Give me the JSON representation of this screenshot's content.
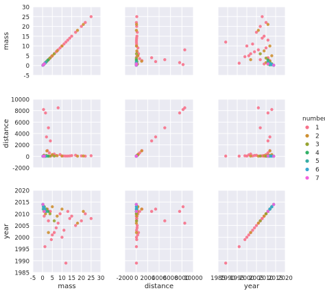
{
  "chart_data": {
    "type": "scatter",
    "layout": "pairplot",
    "variables": [
      "mass",
      "distance",
      "year"
    ],
    "hue_title": "number",
    "axes": {
      "mass": {
        "label": "mass",
        "lim": [
          -5,
          30
        ],
        "ticks": [
          -5,
          0,
          5,
          10,
          15,
          20,
          25,
          30
        ]
      },
      "distance": {
        "label": "distance",
        "lim": [
          -2000,
          10000
        ],
        "ticks": [
          -2000,
          0,
          2000,
          4000,
          6000,
          8000,
          10000
        ]
      },
      "year": {
        "label": "year",
        "lim": [
          1985,
          2020
        ],
        "ticks": [
          1985,
          1990,
          1995,
          2000,
          2005,
          2010,
          2015,
          2020
        ]
      }
    },
    "legend_placement": "right",
    "grid": true,
    "series": [
      {
        "name": "1",
        "color": "#f77189",
        "points": [
          {
            "mass": 25.0,
            "distance": 100,
            "year": 2008
          },
          {
            "mass": 12.0,
            "distance": 40,
            "year": 1989
          },
          {
            "mass": 8.0,
            "distance": 8500,
            "year": 2006
          },
          {
            "mass": 0.5,
            "distance": 8200,
            "year": 2013
          },
          {
            "mass": 1.5,
            "distance": 7600,
            "year": 2011
          },
          {
            "mass": 3.0,
            "distance": 5000,
            "year": 2007
          },
          {
            "mass": 2.0,
            "distance": 3400,
            "year": 2012
          },
          {
            "mass": 4.0,
            "distance": 2700,
            "year": 2011
          },
          {
            "mass": 20.0,
            "distance": 80,
            "year": 2007
          },
          {
            "mass": 17.0,
            "distance": 180,
            "year": 2005
          },
          {
            "mass": 15.0,
            "distance": 120,
            "year": 2009
          },
          {
            "mass": 11.0,
            "distance": 60,
            "year": 2003
          },
          {
            "mass": 10.0,
            "distance": 50,
            "year": 2000
          },
          {
            "mass": 9.0,
            "distance": 300,
            "year": 2010
          },
          {
            "mass": 7.0,
            "distance": 150,
            "year": 2004
          },
          {
            "mass": 6.0,
            "distance": 400,
            "year": 2002
          },
          {
            "mass": 5.0,
            "distance": 250,
            "year": 2001
          },
          {
            "mass": 4.5,
            "distance": 90,
            "year": 1999
          },
          {
            "mass": 3.5,
            "distance": 600,
            "year": 2011
          },
          {
            "mass": 2.5,
            "distance": 1000,
            "year": 2012
          },
          {
            "mass": 1.2,
            "distance": 35,
            "year": 1996
          },
          {
            "mass": 0.8,
            "distance": 20,
            "year": 2009
          },
          {
            "mass": 13.0,
            "distance": 45,
            "year": 2011
          },
          {
            "mass": 22.0,
            "distance": 30,
            "year": 2010
          },
          {
            "mass": 14.0,
            "distance": 70,
            "year": 2008
          }
        ]
      },
      {
        "name": "2",
        "color": "#ce9032",
        "points": [
          {
            "mass": 21.0,
            "distance": 60,
            "year": 2011
          },
          {
            "mass": 18.0,
            "distance": 25,
            "year": 2006
          },
          {
            "mass": 10.0,
            "distance": 55,
            "year": 2012
          },
          {
            "mass": 7.5,
            "distance": 110,
            "year": 2009
          },
          {
            "mass": 5.0,
            "distance": 300,
            "year": 2013
          },
          {
            "mass": 3.0,
            "distance": 40,
            "year": 2002
          },
          {
            "mass": 1.5,
            "distance": 80,
            "year": 2010
          },
          {
            "mass": 0.7,
            "distance": 200,
            "year": 2011
          },
          {
            "mass": 2.2,
            "distance": 950,
            "year": 2012
          }
        ]
      },
      {
        "name": "3",
        "color": "#97a431",
        "points": [
          {
            "mass": 6.0,
            "distance": 45,
            "year": 2007
          },
          {
            "mass": 3.8,
            "distance": 20,
            "year": 2010
          },
          {
            "mass": 2.0,
            "distance": 130,
            "year": 2012
          },
          {
            "mass": 0.9,
            "distance": 60,
            "year": 2013
          },
          {
            "mass": 1.4,
            "distance": 35,
            "year": 2011
          }
        ]
      },
      {
        "name": "4",
        "color": "#32b166",
        "points": [
          {
            "mass": 2.8,
            "distance": 25,
            "year": 2011
          },
          {
            "mass": 1.0,
            "distance": 40,
            "year": 2012
          },
          {
            "mass": 0.4,
            "distance": 70,
            "year": 2013
          },
          {
            "mass": 0.2,
            "distance": 30,
            "year": 2014
          }
        ]
      },
      {
        "name": "5",
        "color": "#36ada4",
        "points": [
          {
            "mass": 1.8,
            "distance": 20,
            "year": 2011
          },
          {
            "mass": 0.6,
            "distance": 35,
            "year": 2013
          },
          {
            "mass": 0.3,
            "distance": 15,
            "year": 2012
          }
        ]
      },
      {
        "name": "6",
        "color": "#39a7d0",
        "points": [
          {
            "mass": 1.2,
            "distance": 50,
            "year": 2012
          },
          {
            "mass": 0.5,
            "distance": 25,
            "year": 2013
          },
          {
            "mass": 0.1,
            "distance": 10,
            "year": 2014
          }
        ]
      },
      {
        "name": "7",
        "color": "#f461dd",
        "points": [
          {
            "mass": 0.9,
            "distance": 40,
            "year": 2011
          },
          {
            "mass": 0.2,
            "distance": 15,
            "year": 2014
          }
        ]
      }
    ]
  }
}
